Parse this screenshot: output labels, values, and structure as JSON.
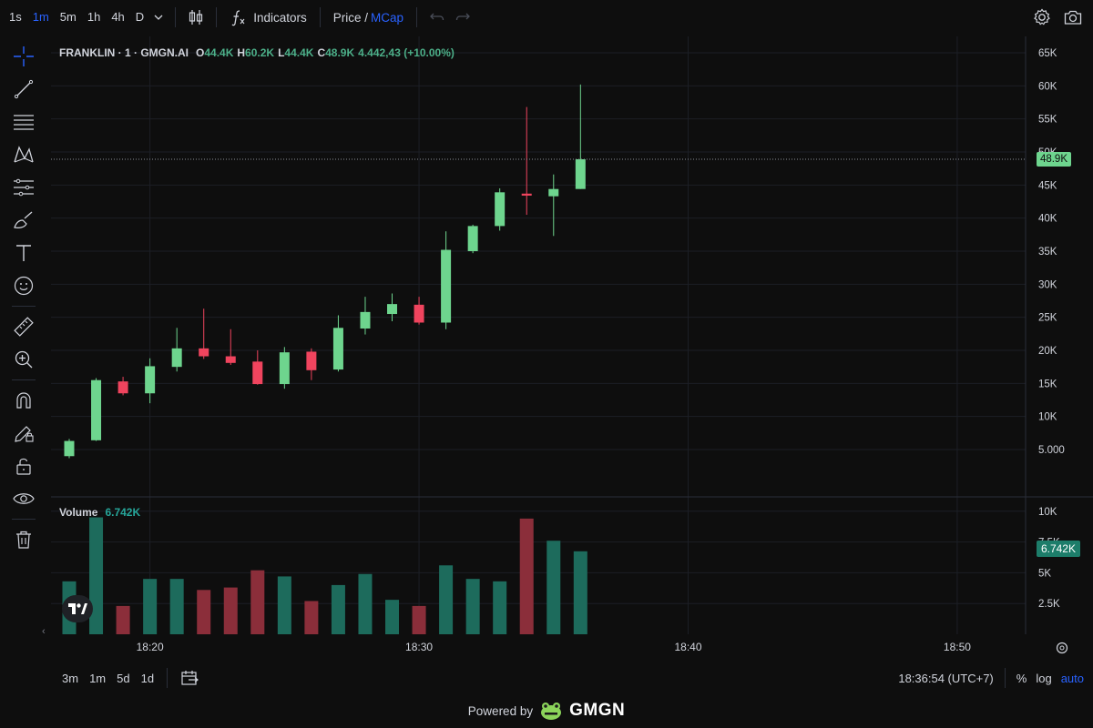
{
  "timeframes": [
    {
      "label": "1s",
      "active": false
    },
    {
      "label": "1m",
      "active": true
    },
    {
      "label": "5m",
      "active": false
    },
    {
      "label": "1h",
      "active": false
    },
    {
      "label": "4h",
      "active": false
    },
    {
      "label": "D",
      "active": false
    }
  ],
  "toolbar": {
    "indicators_label": "Indicators",
    "price_label": "Price /",
    "mcap_label": "MCap"
  },
  "legend": {
    "symbol": "FRANKLIN · 1 · GMGN.AI",
    "o_key": "O",
    "o_val": "44.4K",
    "h_key": "H",
    "h_val": "60.2K",
    "l_key": "L",
    "l_val": "44.4K",
    "c_key": "C",
    "c_val": "48.9K",
    "change": "4.442,43 (+10.00%)"
  },
  "volume_legend": {
    "label": "Volume",
    "value": "6.742K"
  },
  "price_tag": "48.9K",
  "volume_tag": "6.742K",
  "bottom": {
    "ranges": [
      "3m",
      "1m",
      "5d",
      "1d"
    ],
    "time": "18:36:54 (UTC+7)",
    "percent": "%",
    "log": "log",
    "auto": "auto"
  },
  "footer": {
    "powered": "Powered by",
    "brand": "GMGN"
  },
  "colors": {
    "up": "#6ed58e",
    "down": "#f0445e",
    "vol_up": "#1d6b5c",
    "vol_down": "#8b2e3a",
    "accent": "#2962ff"
  },
  "chart_data": {
    "type": "candlestick",
    "x_ticks": [
      "18:20",
      "18:30",
      "18:40",
      "18:50"
    ],
    "y_ticks": [
      "65K",
      "60K",
      "55K",
      "50K",
      "45K",
      "40K",
      "35K",
      "30K",
      "25K",
      "20K",
      "15K",
      "10K",
      "5.000"
    ],
    "y_tick_values": [
      65000,
      60000,
      55000,
      50000,
      45000,
      40000,
      35000,
      30000,
      25000,
      20000,
      15000,
      10000,
      5000
    ],
    "volume_ticks": [
      "10K",
      "7.5K",
      "5K",
      "2.5K"
    ],
    "volume_tick_values": [
      10000,
      7500,
      5000,
      2500
    ],
    "ylim": [
      0,
      67000
    ],
    "volume_ylim": [
      0,
      10500
    ],
    "time_start": "18:17",
    "time_end": "18:52",
    "candles": [
      {
        "t": "18:17",
        "o": 4000,
        "h": 6600,
        "l": 3700,
        "c": 6300
      },
      {
        "t": "18:18",
        "o": 6400,
        "h": 15800,
        "l": 6300,
        "c": 15500
      },
      {
        "t": "18:19",
        "o": 15300,
        "h": 16000,
        "l": 13200,
        "c": 13500
      },
      {
        "t": "18:20",
        "o": 13500,
        "h": 18800,
        "l": 12000,
        "c": 17600
      },
      {
        "t": "18:21",
        "o": 17500,
        "h": 23400,
        "l": 16800,
        "c": 20300
      },
      {
        "t": "18:22",
        "o": 20300,
        "h": 26300,
        "l": 18700,
        "c": 19100
      },
      {
        "t": "18:23",
        "o": 19100,
        "h": 23200,
        "l": 17800,
        "c": 18100
      },
      {
        "t": "18:24",
        "o": 18300,
        "h": 20000,
        "l": 14800,
        "c": 14900
      },
      {
        "t": "18:25",
        "o": 14900,
        "h": 20500,
        "l": 14200,
        "c": 19700
      },
      {
        "t": "18:26",
        "o": 19800,
        "h": 20300,
        "l": 15500,
        "c": 17000
      },
      {
        "t": "18:27",
        "o": 17100,
        "h": 25300,
        "l": 16800,
        "c": 23400
      },
      {
        "t": "18:28",
        "o": 23300,
        "h": 28100,
        "l": 22400,
        "c": 25800
      },
      {
        "t": "18:29",
        "o": 25500,
        "h": 28600,
        "l": 24400,
        "c": 27000
      },
      {
        "t": "18:30",
        "o": 26900,
        "h": 28100,
        "l": 23900,
        "c": 24200
      },
      {
        "t": "18:31",
        "o": 24200,
        "h": 38000,
        "l": 23200,
        "c": 35200
      },
      {
        "t": "18:32",
        "o": 35000,
        "h": 39000,
        "l": 34700,
        "c": 38800
      },
      {
        "t": "18:33",
        "o": 38800,
        "h": 44500,
        "l": 38100,
        "c": 43900
      },
      {
        "t": "18:34",
        "o": 43700,
        "h": 56800,
        "l": 40500,
        "c": 43400
      },
      {
        "t": "18:35",
        "o": 43300,
        "h": 46600,
        "l": 37300,
        "c": 44400
      },
      {
        "t": "18:36",
        "o": 44400,
        "h": 60200,
        "l": 44400,
        "c": 48900
      }
    ],
    "volumes": [
      {
        "t": "18:17",
        "v": 4300,
        "dir": "up"
      },
      {
        "t": "18:18",
        "v": 9500,
        "dir": "up"
      },
      {
        "t": "18:19",
        "v": 2300,
        "dir": "down"
      },
      {
        "t": "18:20",
        "v": 4500,
        "dir": "up"
      },
      {
        "t": "18:21",
        "v": 4500,
        "dir": "up"
      },
      {
        "t": "18:22",
        "v": 3600,
        "dir": "down"
      },
      {
        "t": "18:23",
        "v": 3800,
        "dir": "down"
      },
      {
        "t": "18:24",
        "v": 5200,
        "dir": "down"
      },
      {
        "t": "18:25",
        "v": 4700,
        "dir": "up"
      },
      {
        "t": "18:26",
        "v": 2700,
        "dir": "down"
      },
      {
        "t": "18:27",
        "v": 4000,
        "dir": "up"
      },
      {
        "t": "18:28",
        "v": 4900,
        "dir": "up"
      },
      {
        "t": "18:29",
        "v": 2800,
        "dir": "up"
      },
      {
        "t": "18:30",
        "v": 2300,
        "dir": "down"
      },
      {
        "t": "18:31",
        "v": 5600,
        "dir": "up"
      },
      {
        "t": "18:32",
        "v": 4500,
        "dir": "up"
      },
      {
        "t": "18:33",
        "v": 4300,
        "dir": "up"
      },
      {
        "t": "18:34",
        "v": 9400,
        "dir": "down"
      },
      {
        "t": "18:35",
        "v": 7600,
        "dir": "up"
      },
      {
        "t": "18:36",
        "v": 6742,
        "dir": "up"
      }
    ]
  }
}
